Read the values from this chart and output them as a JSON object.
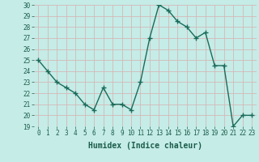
{
  "x": [
    0,
    1,
    2,
    3,
    4,
    5,
    6,
    7,
    8,
    9,
    10,
    11,
    12,
    13,
    14,
    15,
    16,
    17,
    18,
    19,
    20,
    21,
    22,
    23
  ],
  "y": [
    25,
    24,
    23,
    22.5,
    22,
    21,
    20.5,
    22.5,
    21,
    21,
    20.5,
    23,
    27,
    30,
    29.5,
    28.5,
    28,
    27,
    27.5,
    24.5,
    24.5,
    19,
    20,
    20
  ],
  "line_color": "#1a6b5a",
  "marker": "+",
  "marker_size": 4,
  "bg_color": "#c5ece7",
  "grid_color": "#d4b8b8",
  "xlabel": "Humidex (Indice chaleur)",
  "ylim": [
    19,
    30
  ],
  "xlim": [
    -0.5,
    23.5
  ],
  "yticks": [
    19,
    20,
    21,
    22,
    23,
    24,
    25,
    26,
    27,
    28,
    29,
    30
  ],
  "xticks": [
    0,
    1,
    2,
    3,
    4,
    5,
    6,
    7,
    8,
    9,
    10,
    11,
    12,
    13,
    14,
    15,
    16,
    17,
    18,
    19,
    20,
    21,
    22,
    23
  ],
  "tick_fontsize": 5.5,
  "xlabel_fontsize": 7,
  "linewidth": 1.0,
  "marker_linewidth": 1.0
}
